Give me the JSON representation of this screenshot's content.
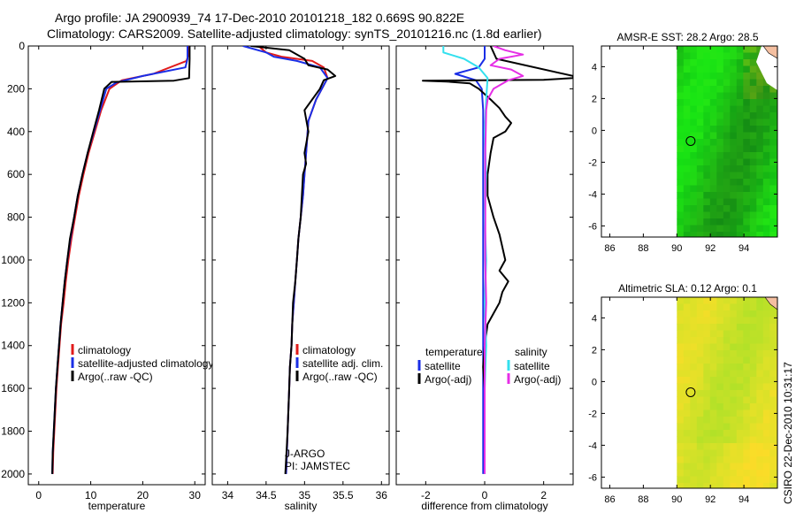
{
  "title_line1": "Argo profile: JA 2900939_74 17-Dec-2010 20101218_182 0.669S 90.822E",
  "title_line2": "Climatology: CARS2009. Satellite-adjusted climatology: synTS_20101216.nc (1.8d earlier)",
  "credits": {
    "project": "J-ARGO",
    "pi": "PI: JAMSTEC"
  },
  "timestamp": "CSIRO 22-Dec-2010 10:31:17",
  "colors": {
    "climatology": "#e11b1b",
    "satellite": "#1a2ee6",
    "argo": "#000000",
    "sal_satellite": "#33e0ee",
    "sal_argo": "#e62ee6"
  },
  "chart_data": [
    {
      "type": "line",
      "name": "temperature-profile",
      "xlabel": "temperature",
      "xlim": [
        -2,
        32
      ],
      "ylim": [
        2050,
        0
      ],
      "xticks": [
        0,
        10,
        20,
        30
      ],
      "yticks": [
        0,
        200,
        400,
        600,
        800,
        1000,
        1200,
        1400,
        1600,
        1800,
        2000
      ],
      "legend": [
        {
          "label": "climatology",
          "color": "#e11b1b"
        },
        {
          "label": "satellite-adjusted climatology",
          "color": "#1a2ee6"
        },
        {
          "label": "Argo(..raw -QC)",
          "color": "#000000"
        }
      ],
      "series": [
        {
          "name": "climatology",
          "color": "#e11b1b",
          "points": [
            [
              28.8,
              0
            ],
            [
              28.8,
              40
            ],
            [
              28.4,
              70
            ],
            [
              22,
              130
            ],
            [
              16,
              160
            ],
            [
              13.6,
              200
            ],
            [
              12,
              300
            ],
            [
              10.8,
              400
            ],
            [
              9.6,
              500
            ],
            [
              8.6,
              600
            ],
            [
              7.7,
              700
            ],
            [
              7,
              800
            ],
            [
              6.3,
              900
            ],
            [
              5.7,
              1000
            ],
            [
              5.2,
              1100
            ],
            [
              4.8,
              1200
            ],
            [
              4.3,
              1300
            ],
            [
              4,
              1400
            ],
            [
              3.7,
              1500
            ],
            [
              3.4,
              1600
            ],
            [
              3.2,
              1700
            ],
            [
              3,
              1800
            ],
            [
              2.8,
              1900
            ],
            [
              2.7,
              2000
            ]
          ]
        },
        {
          "name": "satellite-adjusted climatology",
          "color": "#1a2ee6",
          "points": [
            [
              28.6,
              0
            ],
            [
              28.6,
              60
            ],
            [
              28.2,
              100
            ],
            [
              20,
              140
            ],
            [
              15,
              170
            ],
            [
              13,
              200
            ],
            [
              11.8,
              300
            ],
            [
              10.6,
              400
            ],
            [
              9.4,
              500
            ],
            [
              8.4,
              600
            ],
            [
              7.5,
              700
            ],
            [
              6.8,
              800
            ],
            [
              6.1,
              900
            ],
            [
              5.5,
              1000
            ],
            [
              5,
              1100
            ],
            [
              4.6,
              1200
            ],
            [
              4.2,
              1300
            ],
            [
              3.9,
              1400
            ],
            [
              3.6,
              1500
            ],
            [
              3.3,
              1600
            ],
            [
              3.1,
              1700
            ],
            [
              2.9,
              1800
            ],
            [
              2.7,
              1900
            ],
            [
              2.6,
              2000
            ]
          ]
        },
        {
          "name": "Argo(..raw -QC)",
          "color": "#000000",
          "points": [
            [
              29,
              0
            ],
            [
              29,
              60
            ],
            [
              28.9,
              150
            ],
            [
              26,
              162
            ],
            [
              14,
              168
            ],
            [
              12.6,
              200
            ],
            [
              11.6,
              300
            ],
            [
              10.5,
              400
            ],
            [
              9.4,
              500
            ],
            [
              8.4,
              600
            ],
            [
              7.5,
              700
            ],
            [
              6.8,
              800
            ],
            [
              6,
              900
            ],
            [
              5.5,
              1000
            ],
            [
              5,
              1100
            ],
            [
              4.6,
              1200
            ],
            [
              4.2,
              1300
            ],
            [
              3.9,
              1400
            ],
            [
              3.6,
              1500
            ],
            [
              3.3,
              1600
            ],
            [
              3.1,
              1700
            ],
            [
              2.9,
              1800
            ],
            [
              2.7,
              1900
            ],
            [
              2.6,
              2000
            ]
          ]
        }
      ]
    },
    {
      "type": "line",
      "name": "salinity-profile",
      "xlabel": "salinity",
      "xlim": [
        33.8,
        36.1
      ],
      "ylim": [
        2050,
        0
      ],
      "xticks": [
        34,
        34.5,
        35,
        35.5,
        36
      ],
      "legend": [
        {
          "label": "climatology",
          "color": "#e11b1b"
        },
        {
          "label": "satellite adj. clim.",
          "color": "#1a2ee6"
        },
        {
          "label": "Argo(..raw -QC)",
          "color": "#000000"
        }
      ],
      "series": [
        {
          "name": "climatology",
          "color": "#e11b1b",
          "points": [
            [
              34.4,
              0
            ],
            [
              34.5,
              30
            ],
            [
              34.7,
              50
            ],
            [
              35.1,
              70
            ],
            [
              35.25,
              100
            ],
            [
              35.3,
              150
            ],
            [
              35.15,
              250
            ],
            [
              35.05,
              350
            ],
            [
              35.02,
              500
            ],
            [
              35.0,
              600
            ],
            [
              34.98,
              700
            ],
            [
              34.95,
              800
            ],
            [
              34.92,
              900
            ],
            [
              34.9,
              1000
            ],
            [
              34.88,
              1100
            ],
            [
              34.86,
              1200
            ],
            [
              34.84,
              1300
            ],
            [
              34.83,
              1400
            ],
            [
              34.81,
              1500
            ],
            [
              34.8,
              1600
            ],
            [
              34.78,
              1800
            ],
            [
              34.76,
              2000
            ]
          ]
        },
        {
          "name": "satellite adj. clim.",
          "color": "#1a2ee6",
          "points": [
            [
              34.2,
              0
            ],
            [
              34.5,
              30
            ],
            [
              34.6,
              50
            ],
            [
              34.9,
              70
            ],
            [
              35.2,
              100
            ],
            [
              35.3,
              150
            ],
            [
              35.15,
              250
            ],
            [
              35.05,
              350
            ],
            [
              35.02,
              500
            ],
            [
              35.0,
              600
            ],
            [
              34.98,
              700
            ],
            [
              34.95,
              800
            ],
            [
              34.92,
              900
            ],
            [
              34.9,
              1000
            ],
            [
              34.88,
              1100
            ],
            [
              34.86,
              1200
            ],
            [
              34.84,
              1300
            ],
            [
              34.83,
              1400
            ],
            [
              34.81,
              1500
            ],
            [
              34.8,
              1600
            ],
            [
              34.78,
              1800
            ],
            [
              34.76,
              2000
            ]
          ]
        },
        {
          "name": "Argo(..raw -QC)",
          "color": "#000000",
          "points": [
            [
              34.3,
              0
            ],
            [
              34.8,
              20
            ],
            [
              35.0,
              60
            ],
            [
              35.05,
              90
            ],
            [
              35.3,
              110
            ],
            [
              35.4,
              140
            ],
            [
              35.25,
              160
            ],
            [
              35.2,
              200
            ],
            [
              35.1,
              250
            ],
            [
              35.0,
              300
            ],
            [
              35.05,
              400
            ],
            [
              35.0,
              500
            ],
            [
              35.02,
              550
            ],
            [
              34.98,
              600
            ],
            [
              34.95,
              800
            ],
            [
              34.92,
              900
            ],
            [
              34.9,
              1000
            ],
            [
              34.88,
              1100
            ],
            [
              34.85,
              1200
            ],
            [
              34.83,
              1400
            ],
            [
              34.81,
              1500
            ],
            [
              34.8,
              1600
            ],
            [
              34.78,
              1800
            ],
            [
              34.75,
              2000
            ]
          ]
        }
      ]
    },
    {
      "type": "line",
      "name": "difference-profile",
      "xlabel": "difference from climatology",
      "xlim": [
        -3,
        3
      ],
      "ylim": [
        2050,
        0
      ],
      "xticks": [
        -2,
        0,
        2
      ],
      "legend_headers": [
        "temperature",
        "salinity"
      ],
      "legend": [
        {
          "label": "satellite",
          "color": "#1a2ee6"
        },
        {
          "label": "Argo(-adj)",
          "color": "#000000"
        },
        {
          "label": "satellite",
          "color": "#33e0ee"
        },
        {
          "label": "Argo(-adj)",
          "color": "#e62ee6"
        }
      ],
      "series": [
        {
          "name": "temp satellite",
          "color": "#1a2ee6",
          "points": [
            [
              0,
              0
            ],
            [
              0,
              60
            ],
            [
              -0.2,
              100
            ],
            [
              -1,
              130
            ],
            [
              -0.3,
              160
            ],
            [
              -0.1,
              200
            ],
            [
              -0.05,
              300
            ],
            [
              -0.05,
              500
            ],
            [
              -0.05,
              800
            ],
            [
              -0.05,
              1200
            ],
            [
              -0.05,
              1600
            ],
            [
              -0.05,
              2000
            ]
          ]
        },
        {
          "name": "temp Argo(-adj)",
          "color": "#000000",
          "points": [
            [
              0.2,
              0
            ],
            [
              0.4,
              60
            ],
            [
              3,
              140
            ],
            [
              3,
              150
            ],
            [
              2,
              158
            ],
            [
              -2.1,
              162
            ],
            [
              -1.3,
              166
            ],
            [
              -0.5,
              175
            ],
            [
              -0.2,
              200
            ],
            [
              0.2,
              250
            ],
            [
              0.5,
              290
            ],
            [
              0.7,
              330
            ],
            [
              0.9,
              360
            ],
            [
              0.7,
              400
            ],
            [
              0.3,
              430
            ],
            [
              0.2,
              500
            ],
            [
              0.1,
              600
            ],
            [
              0.1,
              700
            ],
            [
              0.3,
              800
            ],
            [
              0.5,
              880
            ],
            [
              0.6,
              940
            ],
            [
              0.7,
              1000
            ],
            [
              0.5,
              1050
            ],
            [
              0.8,
              1100
            ],
            [
              0.6,
              1150
            ],
            [
              0.5,
              1200
            ],
            [
              0.3,
              1250
            ],
            [
              0.1,
              1300
            ],
            [
              0,
              1400
            ],
            [
              -0.05,
              1500
            ],
            [
              0,
              1600
            ],
            [
              0,
              1800
            ],
            [
              0,
              2000
            ]
          ]
        },
        {
          "name": "sal satellite",
          "color": "#33e0ee",
          "points": [
            [
              -1.4,
              0
            ],
            [
              -1.4,
              30
            ],
            [
              -0.7,
              60
            ],
            [
              -0.2,
              100
            ],
            [
              0.1,
              150
            ],
            [
              0.05,
              250
            ],
            [
              0,
              400
            ],
            [
              0.05,
              600
            ],
            [
              0,
              800
            ],
            [
              0.05,
              1000
            ],
            [
              0,
              1200
            ],
            [
              0.05,
              1400
            ],
            [
              0,
              1600
            ],
            [
              0,
              2000
            ]
          ]
        },
        {
          "name": "sal Argo(-adj)",
          "color": "#e62ee6",
          "points": [
            [
              0.3,
              0
            ],
            [
              0.7,
              20
            ],
            [
              1.3,
              40
            ],
            [
              0.5,
              60
            ],
            [
              0.2,
              90
            ],
            [
              0.9,
              110
            ],
            [
              1.3,
              140
            ],
            [
              0.8,
              160
            ],
            [
              0.3,
              200
            ],
            [
              0.1,
              250
            ],
            [
              0.05,
              300
            ],
            [
              0.02,
              500
            ],
            [
              0.02,
              800
            ],
            [
              0.02,
              1000
            ],
            [
              0.05,
              1200
            ],
            [
              0,
              1400
            ],
            [
              0,
              1600
            ],
            [
              0,
              2000
            ]
          ]
        }
      ]
    },
    {
      "type": "heatmap",
      "name": "amsr-sst-map",
      "title": "AMSR-E SST: 28.2 Argo: 28.5",
      "xlim": [
        85.5,
        96
      ],
      "ylim": [
        -6.7,
        5.3
      ],
      "xticks": [
        86,
        88,
        90,
        92,
        94
      ],
      "yticks": [
        4,
        2,
        0,
        -2,
        -4,
        -6
      ],
      "data_xmin": 90,
      "argo_position": [
        90.822,
        -0.669
      ]
    },
    {
      "type": "heatmap",
      "name": "altimetric-sla-map",
      "title": "Altimetric SLA: 0.12 Argo: 0.1",
      "xlim": [
        85.5,
        96
      ],
      "ylim": [
        -6.7,
        5.3
      ],
      "xticks": [
        86,
        88,
        90,
        92,
        94
      ],
      "yticks": [
        4,
        2,
        0,
        -2,
        -4,
        -6
      ],
      "data_xmin": 90,
      "argo_position": [
        90.822,
        -0.669
      ]
    }
  ]
}
